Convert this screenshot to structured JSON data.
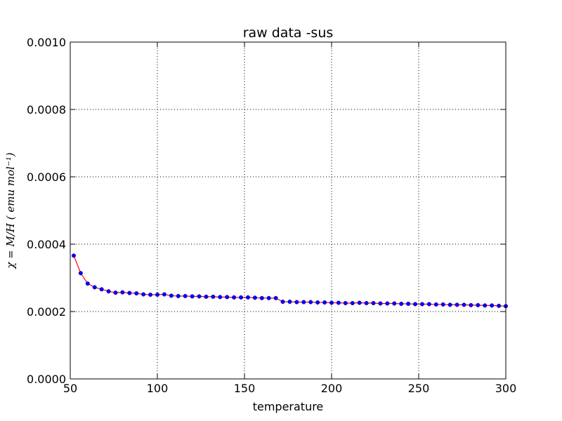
{
  "chart_data": {
    "type": "line",
    "title": "raw data -sus",
    "xlabel": "temperature",
    "ylabel": "χ = M/H ( emu mol⁻¹)",
    "xlim": [
      50,
      300
    ],
    "ylim": [
      0,
      0.001
    ],
    "xticks": [
      50,
      100,
      150,
      200,
      250,
      300
    ],
    "yticks": [
      0.0,
      0.0002,
      0.0004,
      0.0006,
      0.0008,
      0.001
    ],
    "xtick_labels": [
      "50",
      "100",
      "150",
      "200",
      "250",
      "300"
    ],
    "ytick_labels": [
      "0.0000",
      "0.0002",
      "0.0004",
      "0.0006",
      "0.0008",
      "0.0010"
    ],
    "grid": true,
    "line_color": "#ff0000",
    "marker_color": "#0000ff",
    "x": [
      52,
      56,
      60,
      64,
      68,
      72,
      76,
      80,
      84,
      88,
      92,
      96,
      100,
      104,
      108,
      112,
      116,
      120,
      124,
      128,
      132,
      136,
      140,
      144,
      148,
      152,
      156,
      160,
      164,
      168,
      172,
      176,
      180,
      184,
      188,
      192,
      196,
      200,
      204,
      208,
      212,
      216,
      220,
      224,
      228,
      232,
      236,
      240,
      244,
      248,
      252,
      256,
      260,
      264,
      268,
      272,
      276,
      280,
      284,
      288,
      292,
      296,
      300
    ],
    "y": [
      0.000366,
      0.000314,
      0.000283,
      0.000272,
      0.000266,
      0.00026,
      0.000256,
      0.000257,
      0.000255,
      0.000254,
      0.000251,
      0.00025,
      0.00025,
      0.000251,
      0.000247,
      0.000246,
      0.000246,
      0.000245,
      0.000245,
      0.000244,
      0.000244,
      0.000243,
      0.000243,
      0.000242,
      0.000242,
      0.000242,
      0.000241,
      0.00024,
      0.00024,
      0.00024,
      0.000229,
      0.000229,
      0.000228,
      0.000228,
      0.000228,
      0.000227,
      0.000227,
      0.000226,
      0.000226,
      0.000225,
      0.000225,
      0.000226,
      0.000225,
      0.000225,
      0.000224,
      0.000224,
      0.000224,
      0.000223,
      0.000223,
      0.000222,
      0.000222,
      0.000222,
      0.000221,
      0.000221,
      0.00022,
      0.00022,
      0.00022,
      0.000219,
      0.000219,
      0.000218,
      0.000218,
      0.000217,
      0.000216
    ]
  }
}
